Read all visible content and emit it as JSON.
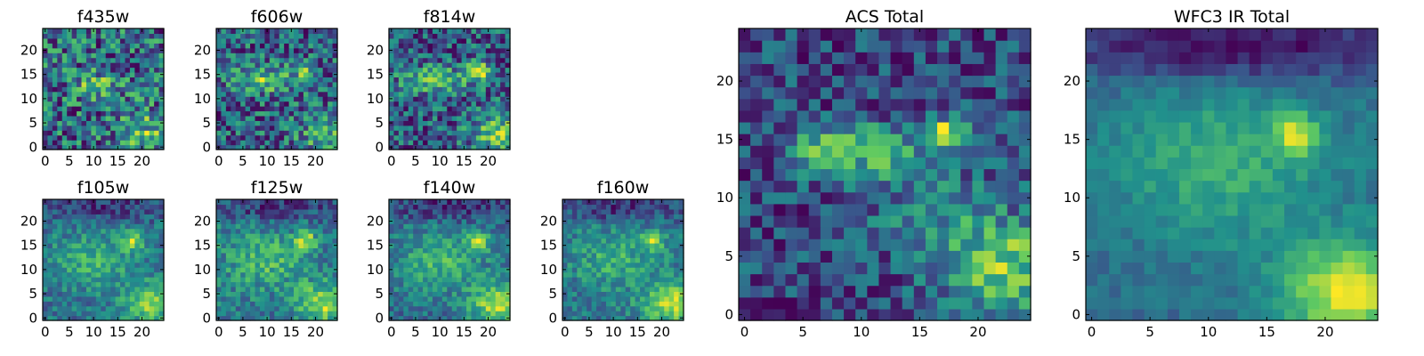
{
  "figure": {
    "colormap": "viridis",
    "colormap_stops": [
      "#440154",
      "#3b528b",
      "#21918c",
      "#5ec962",
      "#fde725"
    ],
    "axes_color": "#000000"
  },
  "chart_data": [
    {
      "type": "heatmap",
      "title": "f435w",
      "grid_size": [
        25,
        25
      ],
      "xticks": [
        0,
        5,
        10,
        15,
        20
      ],
      "yticks": [
        0,
        5,
        10,
        15,
        20
      ],
      "noise": 0.45,
      "features": [
        {
          "x": 11,
          "y": 13,
          "sx": 4,
          "sy": 2,
          "amp": 0.35
        },
        {
          "x": 21,
          "y": 3,
          "sx": 4,
          "sy": 3,
          "amp": 0.4
        }
      ],
      "seed": 11
    },
    {
      "type": "heatmap",
      "title": "f606w",
      "grid_size": [
        25,
        25
      ],
      "xticks": [
        0,
        5,
        10,
        15,
        20
      ],
      "yticks": [
        0,
        5,
        10,
        15,
        20
      ],
      "noise": 0.35,
      "features": [
        {
          "x": 9,
          "y": 14,
          "sx": 5,
          "sy": 2,
          "amp": 0.45
        },
        {
          "x": 18,
          "y": 16,
          "sx": 1.5,
          "sy": 1.5,
          "amp": 0.4
        },
        {
          "x": 22,
          "y": 3,
          "sx": 4,
          "sy": 3,
          "amp": 0.35
        }
      ],
      "seed": 23
    },
    {
      "type": "heatmap",
      "title": "f814w",
      "grid_size": [
        25,
        25
      ],
      "xticks": [
        0,
        5,
        10,
        15,
        20
      ],
      "yticks": [
        0,
        5,
        10,
        15,
        20
      ],
      "noise": 0.3,
      "features": [
        {
          "x": 9,
          "y": 14,
          "sx": 5,
          "sy": 2,
          "amp": 0.4
        },
        {
          "x": 18,
          "y": 16,
          "sx": 1.5,
          "sy": 1.5,
          "amp": 0.6
        },
        {
          "x": 22,
          "y": 3,
          "sx": 4,
          "sy": 3,
          "amp": 0.45
        }
      ],
      "seed": 37
    },
    {
      "type": "heatmap",
      "title": "f105w",
      "grid_size": [
        25,
        25
      ],
      "xticks": [
        0,
        5,
        10,
        15,
        20
      ],
      "yticks": [
        0,
        5,
        10,
        15,
        20
      ],
      "noise": 0.22,
      "features": [
        {
          "x": 10,
          "y": 12,
          "sx": 6,
          "sy": 4,
          "amp": 0.35
        },
        {
          "x": 18,
          "y": 16,
          "sx": 1.5,
          "sy": 1.5,
          "amp": 0.55
        },
        {
          "x": 22,
          "y": 3,
          "sx": 4,
          "sy": 3,
          "amp": 0.55
        },
        {
          "x": 12,
          "y": 23,
          "sx": 10,
          "sy": 2,
          "amp": -0.3
        }
      ],
      "seed": 41
    },
    {
      "type": "heatmap",
      "title": "f125w",
      "grid_size": [
        25,
        25
      ],
      "xticks": [
        0,
        5,
        10,
        15,
        20
      ],
      "yticks": [
        0,
        5,
        10,
        15,
        20
      ],
      "noise": 0.22,
      "features": [
        {
          "x": 10,
          "y": 12,
          "sx": 6,
          "sy": 4,
          "amp": 0.3
        },
        {
          "x": 18,
          "y": 16,
          "sx": 1.5,
          "sy": 1.5,
          "amp": 0.5
        },
        {
          "x": 22,
          "y": 3,
          "sx": 4,
          "sy": 3,
          "amp": 0.5
        },
        {
          "x": 12,
          "y": 23,
          "sx": 10,
          "sy": 2,
          "amp": -0.3
        }
      ],
      "seed": 53
    },
    {
      "type": "heatmap",
      "title": "f140w",
      "grid_size": [
        25,
        25
      ],
      "xticks": [
        0,
        5,
        10,
        15,
        20
      ],
      "yticks": [
        0,
        5,
        10,
        15,
        20
      ],
      "noise": 0.2,
      "features": [
        {
          "x": 10,
          "y": 12,
          "sx": 6,
          "sy": 4,
          "amp": 0.35
        },
        {
          "x": 18,
          "y": 16,
          "sx": 1.5,
          "sy": 1.5,
          "amp": 0.55
        },
        {
          "x": 22,
          "y": 3,
          "sx": 4,
          "sy": 3,
          "amp": 0.6
        },
        {
          "x": 12,
          "y": 23,
          "sx": 10,
          "sy": 2,
          "amp": -0.3
        }
      ],
      "seed": 67
    },
    {
      "type": "heatmap",
      "title": "f160w",
      "grid_size": [
        25,
        25
      ],
      "xticks": [
        0,
        5,
        10,
        15,
        20
      ],
      "yticks": [
        0,
        5,
        10,
        15,
        20
      ],
      "noise": 0.22,
      "features": [
        {
          "x": 10,
          "y": 12,
          "sx": 6,
          "sy": 4,
          "amp": 0.3
        },
        {
          "x": 18,
          "y": 16,
          "sx": 1.5,
          "sy": 1.5,
          "amp": 0.55
        },
        {
          "x": 22,
          "y": 3,
          "sx": 4,
          "sy": 3,
          "amp": 0.65
        },
        {
          "x": 12,
          "y": 23,
          "sx": 10,
          "sy": 2,
          "amp": -0.35
        }
      ],
      "seed": 79
    },
    {
      "type": "heatmap",
      "title": "ACS Total",
      "grid_size": [
        25,
        25
      ],
      "xticks": [
        0,
        5,
        10,
        15,
        20
      ],
      "yticks": [
        0,
        5,
        10,
        15,
        20
      ],
      "noise": 0.25,
      "features": [
        {
          "x": 7,
          "y": 14,
          "sx": 2,
          "sy": 1.5,
          "amp": 0.55
        },
        {
          "x": 12,
          "y": 14,
          "sx": 2,
          "sy": 1.5,
          "amp": 0.5
        },
        {
          "x": 17.5,
          "y": 15.5,
          "sx": 1,
          "sy": 1,
          "amp": 0.8
        },
        {
          "x": 22,
          "y": 4,
          "sx": 3.5,
          "sy": 3,
          "amp": 0.6
        },
        {
          "x": 16,
          "y": 9,
          "sx": 4,
          "sy": 3,
          "amp": 0.2
        }
      ],
      "seed": 97
    },
    {
      "type": "heatmap",
      "title": "WFC3 IR Total",
      "grid_size": [
        25,
        25
      ],
      "xticks": [
        0,
        5,
        10,
        15,
        20
      ],
      "yticks": [
        0,
        5,
        10,
        15,
        20
      ],
      "noise": 0.1,
      "features": [
        {
          "x": 11,
          "y": 13,
          "sx": 7,
          "sy": 5,
          "amp": 0.35
        },
        {
          "x": 17.5,
          "y": 15.5,
          "sx": 1.2,
          "sy": 1.2,
          "amp": 0.6
        },
        {
          "x": 22,
          "y": 2,
          "sx": 4,
          "sy": 3,
          "amp": 0.75
        },
        {
          "x": 12,
          "y": 23,
          "sx": 10,
          "sy": 2,
          "amp": -0.45
        }
      ],
      "seed": 103
    }
  ]
}
